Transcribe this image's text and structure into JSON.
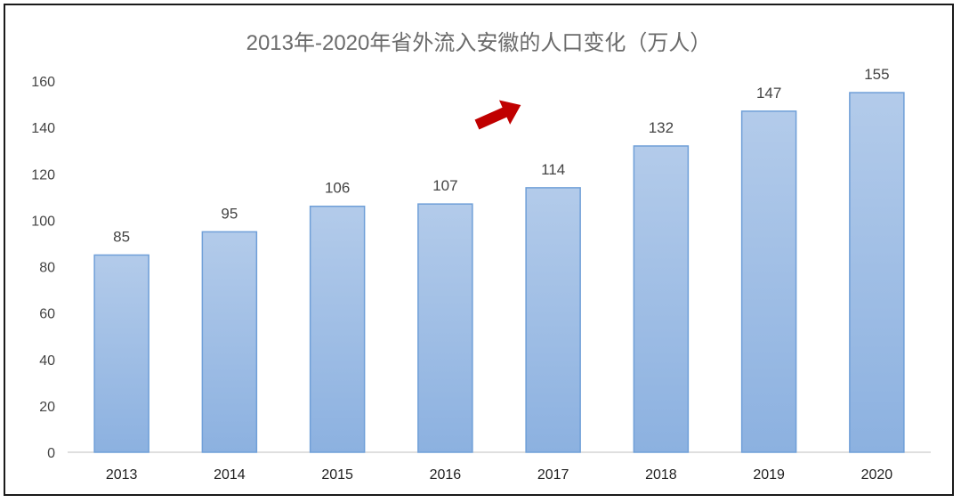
{
  "chart_data": {
    "type": "bar",
    "title": "2013年-2020年省外流入安徽的人口变化（万人）",
    "categories": [
      "2013",
      "2014",
      "2015",
      "2016",
      "2017",
      "2018",
      "2019",
      "2020"
    ],
    "values": [
      85,
      95,
      106,
      107,
      114,
      132,
      147,
      155
    ],
    "data_labels": [
      "85",
      "95",
      "106",
      "107",
      "114",
      "132",
      "147",
      "155"
    ],
    "y_ticks": [
      0,
      20,
      40,
      60,
      80,
      100,
      120,
      140,
      160
    ],
    "ylim": [
      0,
      160
    ],
    "grid": false,
    "legend": "none",
    "bar_color_top": "#b3cbea",
    "bar_color_bottom": "#8cb1e0",
    "bar_border_color": "#6f9fd8",
    "annotation_icon": "arrow-right-icon",
    "annotation_color": "#c00000"
  }
}
